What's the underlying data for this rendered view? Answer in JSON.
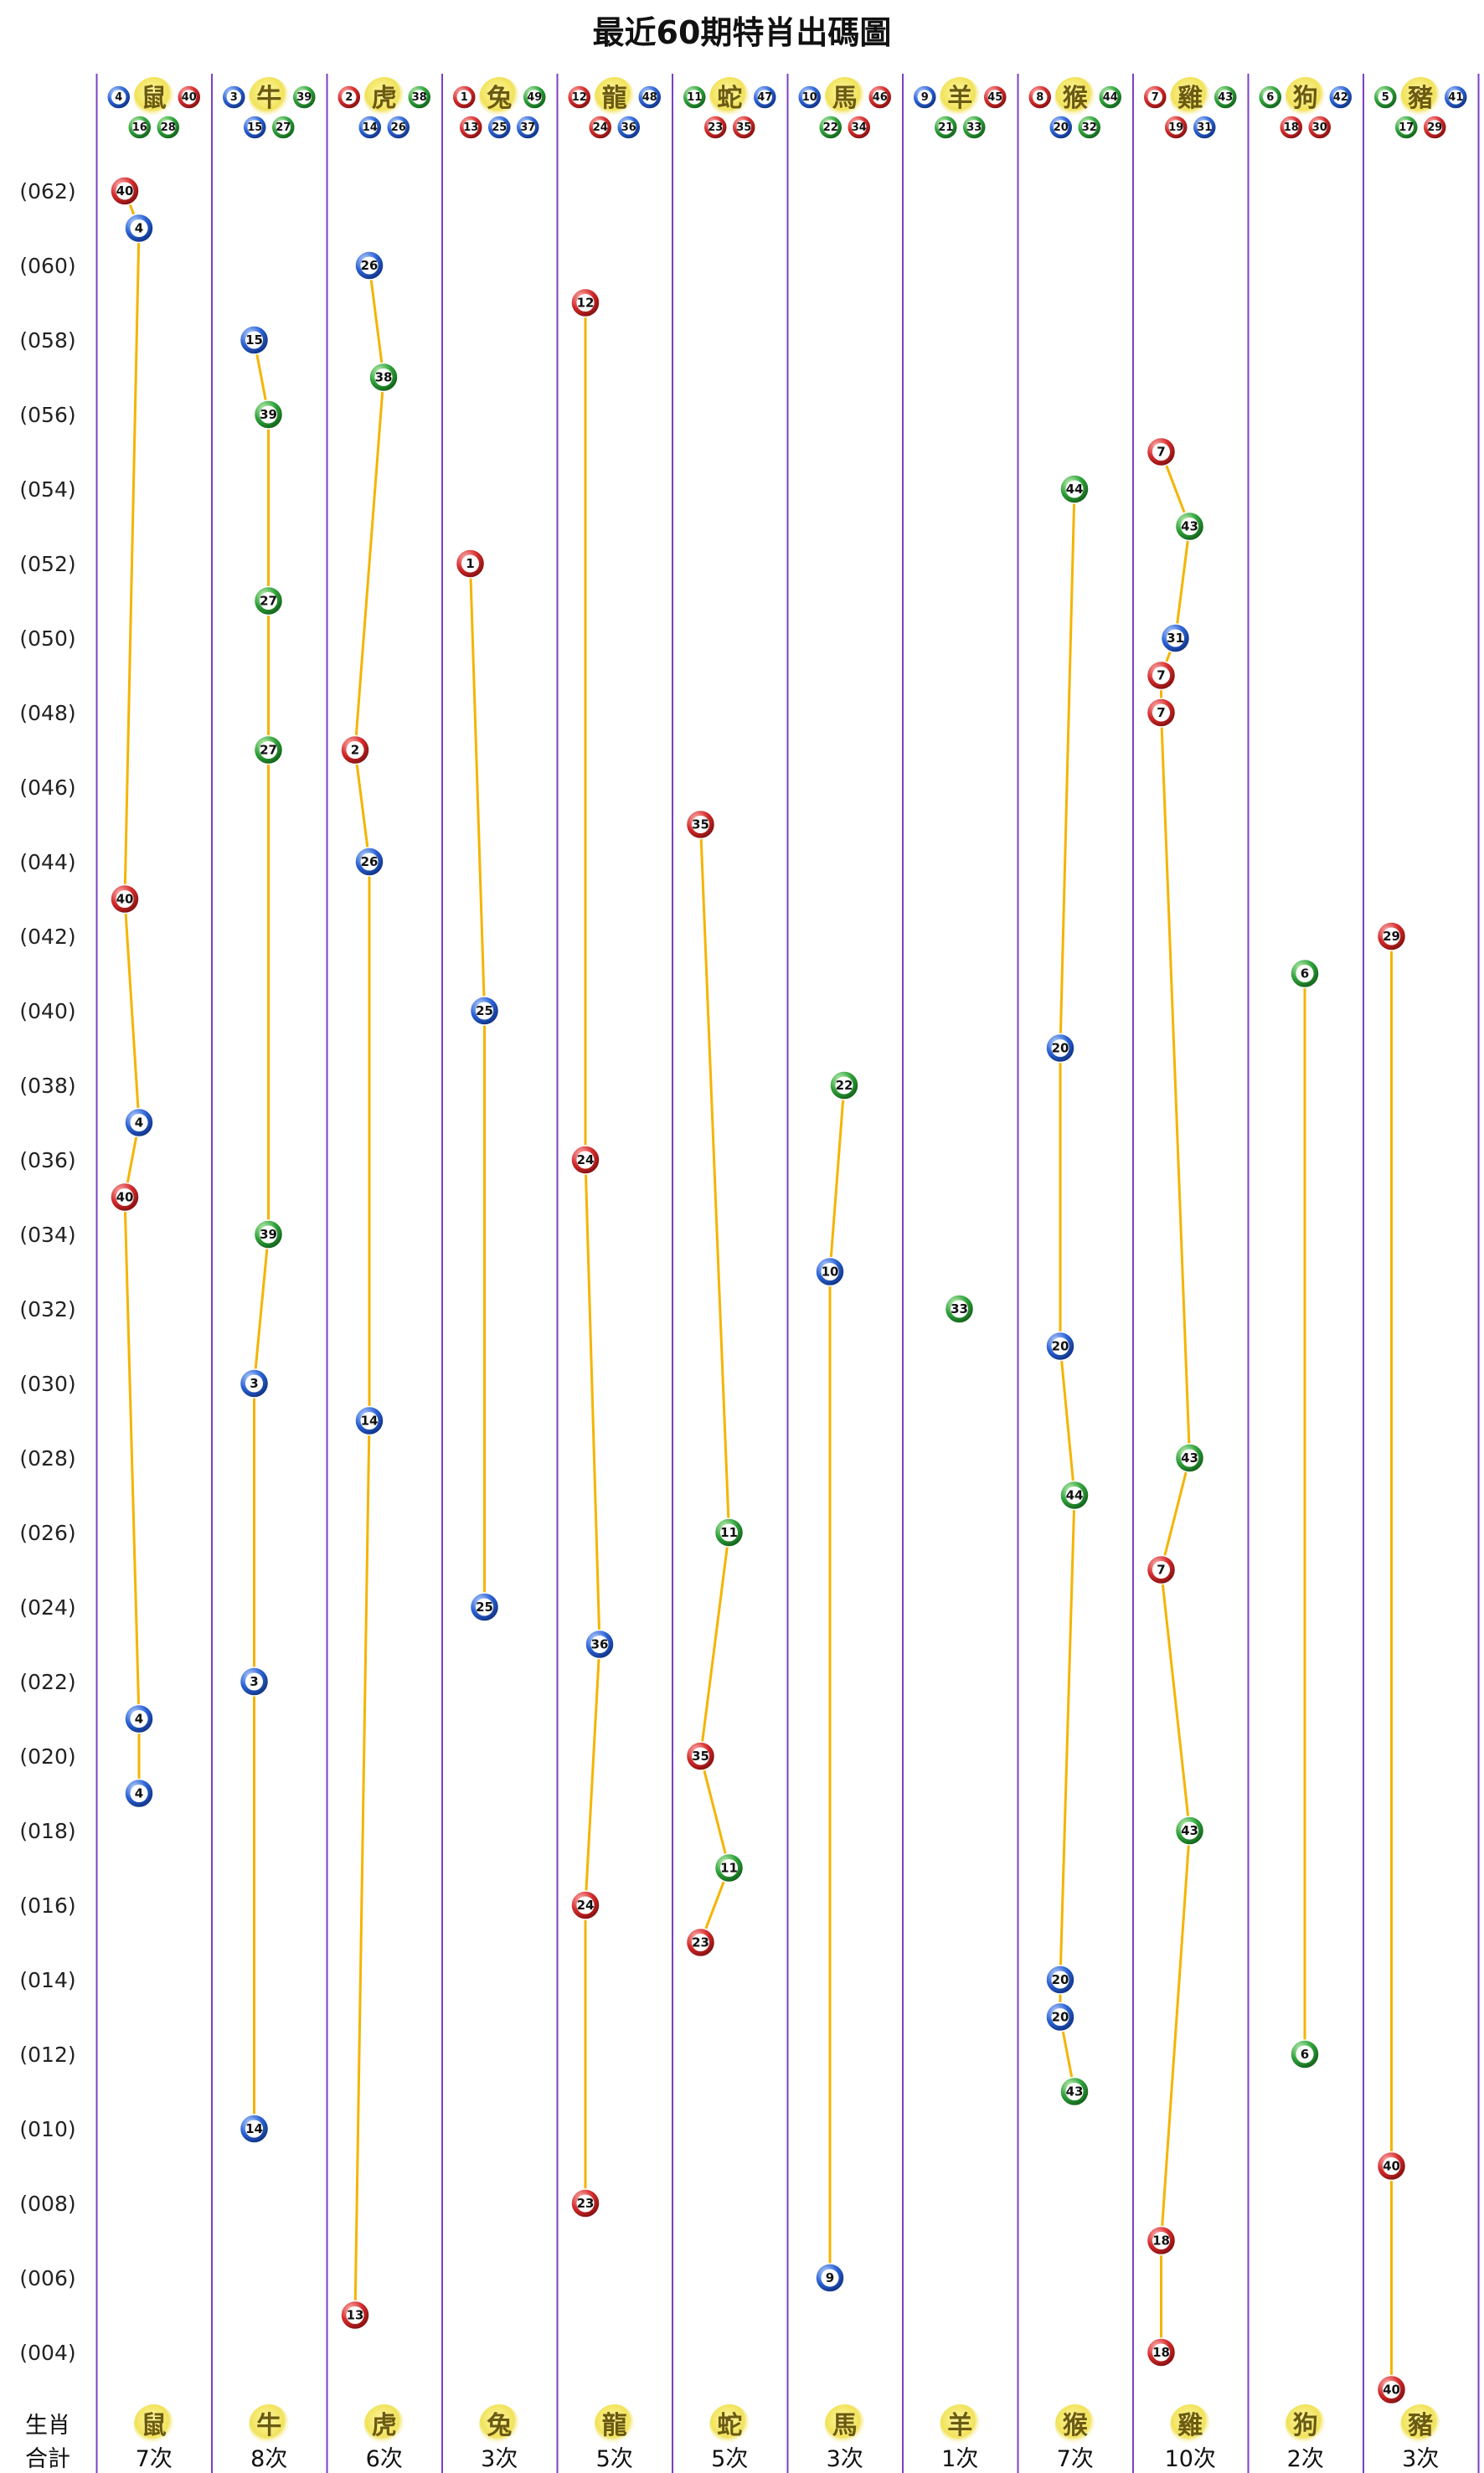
{
  "title": "最近60期特肖出碼圖",
  "footer": {
    "zodiac_label": "生肖",
    "total_label": "合計"
  },
  "colors": {
    "red": "#d42a2a",
    "blue": "#2a62d4",
    "green": "#2ea23a",
    "line": "#f5b400",
    "divider": "#7b3fc4"
  },
  "chart_data": {
    "type": "line",
    "title": "最近60期特肖出碼圖",
    "y_labels": [
      "(062)",
      "(060)",
      "(058)",
      "(056)",
      "(054)",
      "(052)",
      "(050)",
      "(048)",
      "(046)",
      "(044)",
      "(042)",
      "(040)",
      "(038)",
      "(036)",
      "(034)",
      "(032)",
      "(030)",
      "(028)",
      "(026)",
      "(024)",
      "(022)",
      "(020)",
      "(018)",
      "(016)",
      "(014)",
      "(012)",
      "(010)",
      "(008)",
      "(006)",
      "(004)"
    ],
    "ylim": [
      3,
      62
    ],
    "columns": [
      {
        "zodiac": "鼠",
        "numbers": [
          4,
          40,
          16,
          28
        ],
        "total": "7次",
        "points": [
          {
            "p": 62,
            "n": 40
          },
          {
            "p": 61,
            "n": 4
          },
          {
            "p": 43,
            "n": 40
          },
          {
            "p": 37,
            "n": 4
          },
          {
            "p": 35,
            "n": 40
          },
          {
            "p": 21,
            "n": 4
          },
          {
            "p": 19,
            "n": 4
          }
        ]
      },
      {
        "zodiac": "牛",
        "numbers": [
          3,
          39,
          15,
          27
        ],
        "total": "8次",
        "points": [
          {
            "p": 58,
            "n": 15
          },
          {
            "p": 56,
            "n": 39
          },
          {
            "p": 51,
            "n": 27
          },
          {
            "p": 47,
            "n": 27
          },
          {
            "p": 34,
            "n": 39
          },
          {
            "p": 30,
            "n": 3
          },
          {
            "p": 22,
            "n": 3
          },
          {
            "p": 10,
            "n": 14
          }
        ]
      },
      {
        "zodiac": "虎",
        "numbers": [
          2,
          38,
          14,
          26
        ],
        "total": "6次",
        "points": [
          {
            "p": 60,
            "n": 26
          },
          {
            "p": 57,
            "n": 38
          },
          {
            "p": 47,
            "n": 2
          },
          {
            "p": 44,
            "n": 26
          },
          {
            "p": 29,
            "n": 14
          },
          {
            "p": 5,
            "n": 13
          }
        ]
      },
      {
        "zodiac": "兔",
        "numbers": [
          1,
          49,
          13,
          25,
          37
        ],
        "total": "3次",
        "points": [
          {
            "p": 52,
            "n": 1
          },
          {
            "p": 40,
            "n": 25
          },
          {
            "p": 24,
            "n": 25
          }
        ]
      },
      {
        "zodiac": "龍",
        "numbers": [
          12,
          48,
          24,
          36
        ],
        "total": "5次",
        "points": [
          {
            "p": 59,
            "n": 12
          },
          {
            "p": 36,
            "n": 24
          },
          {
            "p": 23,
            "n": 36
          },
          {
            "p": 16,
            "n": 24
          },
          {
            "p": 8,
            "n": 23
          }
        ]
      },
      {
        "zodiac": "蛇",
        "numbers": [
          11,
          47,
          23,
          35
        ],
        "total": "5次",
        "points": [
          {
            "p": 45,
            "n": 35
          },
          {
            "p": 26,
            "n": 11
          },
          {
            "p": 20,
            "n": 35
          },
          {
            "p": 17,
            "n": 11
          },
          {
            "p": 15,
            "n": 23
          }
        ]
      },
      {
        "zodiac": "馬",
        "numbers": [
          10,
          46,
          22,
          34
        ],
        "total": "3次",
        "points": [
          {
            "p": 38,
            "n": 22
          },
          {
            "p": 33,
            "n": 10
          },
          {
            "p": 6,
            "n": 9
          }
        ]
      },
      {
        "zodiac": "羊",
        "numbers": [
          9,
          45,
          21,
          33
        ],
        "total": "1次",
        "points": [
          {
            "p": 32,
            "n": 33
          }
        ]
      },
      {
        "zodiac": "猴",
        "numbers": [
          8,
          44,
          20,
          32
        ],
        "total": "7次",
        "points": [
          {
            "p": 54,
            "n": 44
          },
          {
            "p": 39,
            "n": 20
          },
          {
            "p": 31,
            "n": 20
          },
          {
            "p": 27,
            "n": 44
          },
          {
            "p": 14,
            "n": 20
          },
          {
            "p": 13,
            "n": 20
          },
          {
            "p": 11,
            "n": 43
          }
        ]
      },
      {
        "zodiac": "雞",
        "numbers": [
          7,
          43,
          19,
          31
        ],
        "total": "10次",
        "points": [
          {
            "p": 55,
            "n": 7
          },
          {
            "p": 53,
            "n": 43
          },
          {
            "p": 50,
            "n": 31
          },
          {
            "p": 49,
            "n": 7
          },
          {
            "p": 48,
            "n": 7
          },
          {
            "p": 28,
            "n": 43
          },
          {
            "p": 25,
            "n": 7
          },
          {
            "p": 18,
            "n": 43
          },
          {
            "p": 7,
            "n": 18
          },
          {
            "p": 4,
            "n": 18
          }
        ]
      },
      {
        "zodiac": "狗",
        "numbers": [
          6,
          42,
          18,
          30
        ],
        "total": "2次",
        "points": [
          {
            "p": 41,
            "n": 6
          },
          {
            "p": 12,
            "n": 6
          }
        ]
      },
      {
        "zodiac": "豬",
        "numbers": [
          5,
          41,
          17,
          29
        ],
        "total": "3次",
        "points": [
          {
            "p": 42,
            "n": 29
          },
          {
            "p": 9,
            "n": 40
          },
          {
            "p": 3,
            "n": 40
          }
        ]
      }
    ]
  }
}
